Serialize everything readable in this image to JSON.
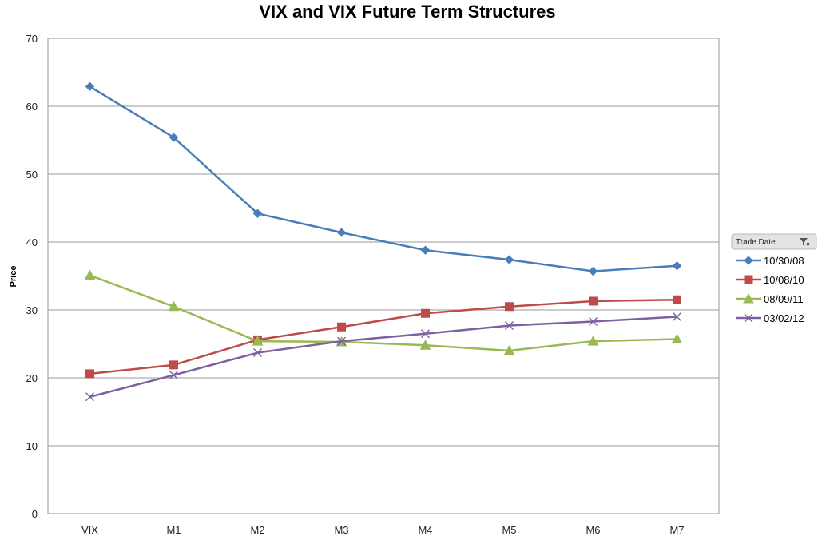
{
  "chart_data": {
    "type": "line",
    "title": "VIX and VIX Future Term Structures",
    "xlabel": "",
    "ylabel": "Price",
    "categories": [
      "VIX",
      "M1",
      "M2",
      "M3",
      "M4",
      "M5",
      "M6",
      "M7"
    ],
    "ylim": [
      0,
      70
    ],
    "yticks": [
      0,
      10,
      20,
      30,
      40,
      50,
      60,
      70
    ],
    "grid": true,
    "legend_position": "right",
    "legend_title": "Trade Date",
    "series": [
      {
        "name": "10/30/08",
        "color": "#4a7ebb",
        "marker": "diamond",
        "values": [
          62.9,
          55.4,
          44.2,
          41.4,
          38.8,
          37.4,
          35.7,
          36.5
        ]
      },
      {
        "name": "10/08/10",
        "color": "#be4b48",
        "marker": "square",
        "values": [
          20.6,
          21.9,
          25.6,
          27.5,
          29.5,
          30.5,
          31.3,
          31.5
        ]
      },
      {
        "name": "08/09/11",
        "color": "#98b954",
        "marker": "triangle",
        "values": [
          35.1,
          30.5,
          25.4,
          25.3,
          24.8,
          24.0,
          25.4,
          25.7
        ]
      },
      {
        "name": "03/02/12",
        "color": "#7d60a0",
        "marker": "x",
        "values": [
          17.2,
          20.4,
          23.7,
          25.4,
          26.5,
          27.7,
          28.3,
          29.0
        ]
      }
    ]
  }
}
